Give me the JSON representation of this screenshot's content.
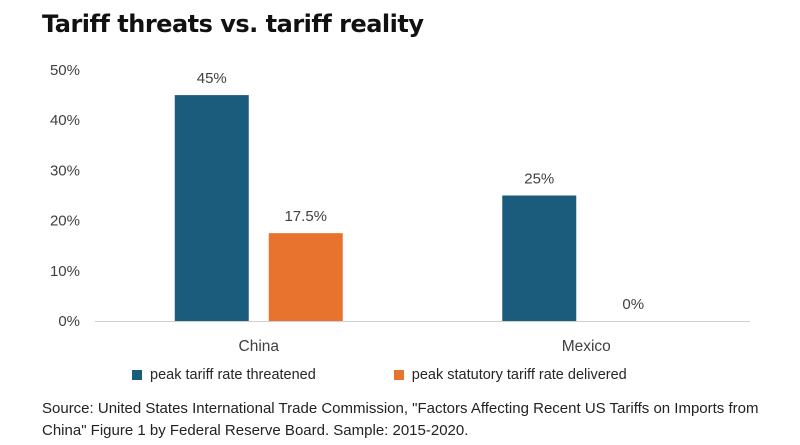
{
  "title": "Tariff threats vs. tariff reality",
  "source": "Source: United States International Trade Commission, \"Factors Affecting Recent US Tariffs on Imports from China\" Figure 1 by Federal Reserve Board. Sample: 2015-2020.",
  "chart_data": {
    "type": "bar",
    "categories": [
      "China",
      "Mexico"
    ],
    "series": [
      {
        "name": "peak tariff rate threatened",
        "values": [
          45,
          25
        ],
        "labels": [
          "45%",
          "25%"
        ],
        "color": "#1b5c7d"
      },
      {
        "name": "peak statutory tariff rate delivered",
        "values": [
          17.5,
          0
        ],
        "labels": [
          "17.5%",
          "0%"
        ],
        "color": "#e8732f"
      }
    ],
    "ylim": [
      0,
      50
    ],
    "yticks": [
      "0%",
      "10%",
      "20%",
      "30%",
      "40%",
      "50%"
    ],
    "grid": false,
    "legend_position": "bottom",
    "xlabel": "",
    "ylabel": ""
  }
}
